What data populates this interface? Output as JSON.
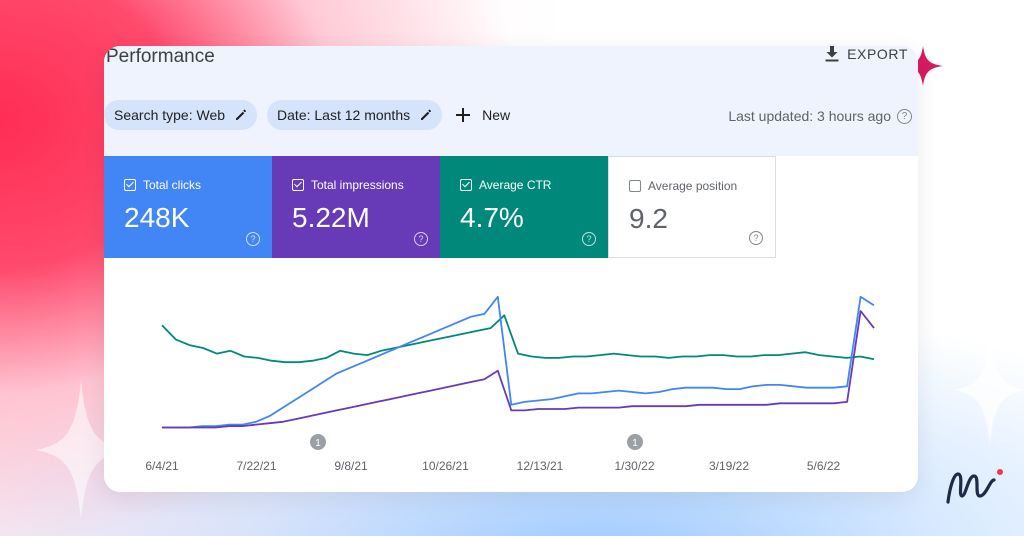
{
  "header": {
    "title": "Performance",
    "export_label": "EXPORT"
  },
  "filters": {
    "search_type": "Search type: Web",
    "date": "Date: Last 12 months",
    "new_label": "New",
    "last_updated": "Last updated: 3 hours ago"
  },
  "metrics": [
    {
      "label": "Total clicks",
      "value": "248K",
      "checked": true,
      "color": "#4285f4"
    },
    {
      "label": "Total impressions",
      "value": "5.22M",
      "checked": true,
      "color": "#673ab7"
    },
    {
      "label": "Average CTR",
      "value": "4.7%",
      "checked": true,
      "color": "#00897b"
    },
    {
      "label": "Average position",
      "value": "9.2",
      "checked": false,
      "color": "#ffffff"
    }
  ],
  "chart_data": {
    "type": "line",
    "x_tick_labels": [
      "6/4/21",
      "7/22/21",
      "9/8/21",
      "10/26/21",
      "12/13/21",
      "1/30/22",
      "3/19/22",
      "5/6/22"
    ],
    "annotations": [
      {
        "label": "1",
        "near": "8/21"
      },
      {
        "label": "1",
        "near": "1/30/22"
      }
    ],
    "series": [
      {
        "color": "#00897b",
        "values": [
          0.78,
          0.68,
          0.64,
          0.62,
          0.58,
          0.6,
          0.56,
          0.55,
          0.53,
          0.52,
          0.52,
          0.53,
          0.55,
          0.6,
          0.58,
          0.57,
          0.6,
          0.62,
          0.64,
          0.66,
          0.68,
          0.7,
          0.72,
          0.74,
          0.76,
          0.85,
          0.58,
          0.56,
          0.55,
          0.55,
          0.56,
          0.56,
          0.57,
          0.58,
          0.57,
          0.56,
          0.56,
          0.55,
          0.56,
          0.56,
          0.57,
          0.57,
          0.56,
          0.56,
          0.57,
          0.57,
          0.58,
          0.59,
          0.57,
          0.56,
          0.55,
          0.56,
          0.54
        ]
      },
      {
        "color": "#4285f4",
        "values": [
          0.06,
          0.06,
          0.06,
          0.07,
          0.07,
          0.08,
          0.08,
          0.1,
          0.14,
          0.2,
          0.26,
          0.32,
          0.38,
          0.44,
          0.48,
          0.52,
          0.56,
          0.6,
          0.64,
          0.68,
          0.72,
          0.76,
          0.8,
          0.84,
          0.86,
          0.98,
          0.22,
          0.24,
          0.25,
          0.26,
          0.28,
          0.3,
          0.3,
          0.31,
          0.32,
          0.31,
          0.3,
          0.31,
          0.33,
          0.34,
          0.34,
          0.34,
          0.33,
          0.33,
          0.35,
          0.36,
          0.36,
          0.35,
          0.34,
          0.34,
          0.34,
          0.35,
          0.98,
          0.92
        ]
      },
      {
        "color": "#673ab7",
        "values": [
          0.06,
          0.06,
          0.06,
          0.06,
          0.06,
          0.07,
          0.07,
          0.08,
          0.09,
          0.1,
          0.12,
          0.14,
          0.16,
          0.18,
          0.2,
          0.22,
          0.24,
          0.26,
          0.28,
          0.3,
          0.32,
          0.34,
          0.36,
          0.38,
          0.4,
          0.46,
          0.18,
          0.18,
          0.19,
          0.19,
          0.19,
          0.2,
          0.2,
          0.2,
          0.2,
          0.21,
          0.21,
          0.21,
          0.21,
          0.21,
          0.22,
          0.22,
          0.22,
          0.22,
          0.22,
          0.22,
          0.23,
          0.23,
          0.23,
          0.23,
          0.23,
          0.24,
          0.88,
          0.76
        ]
      }
    ],
    "grid": false,
    "legend": "none"
  },
  "brand": {
    "accent": "#ff2d55",
    "logo_icon": "brand-mark-icon"
  }
}
